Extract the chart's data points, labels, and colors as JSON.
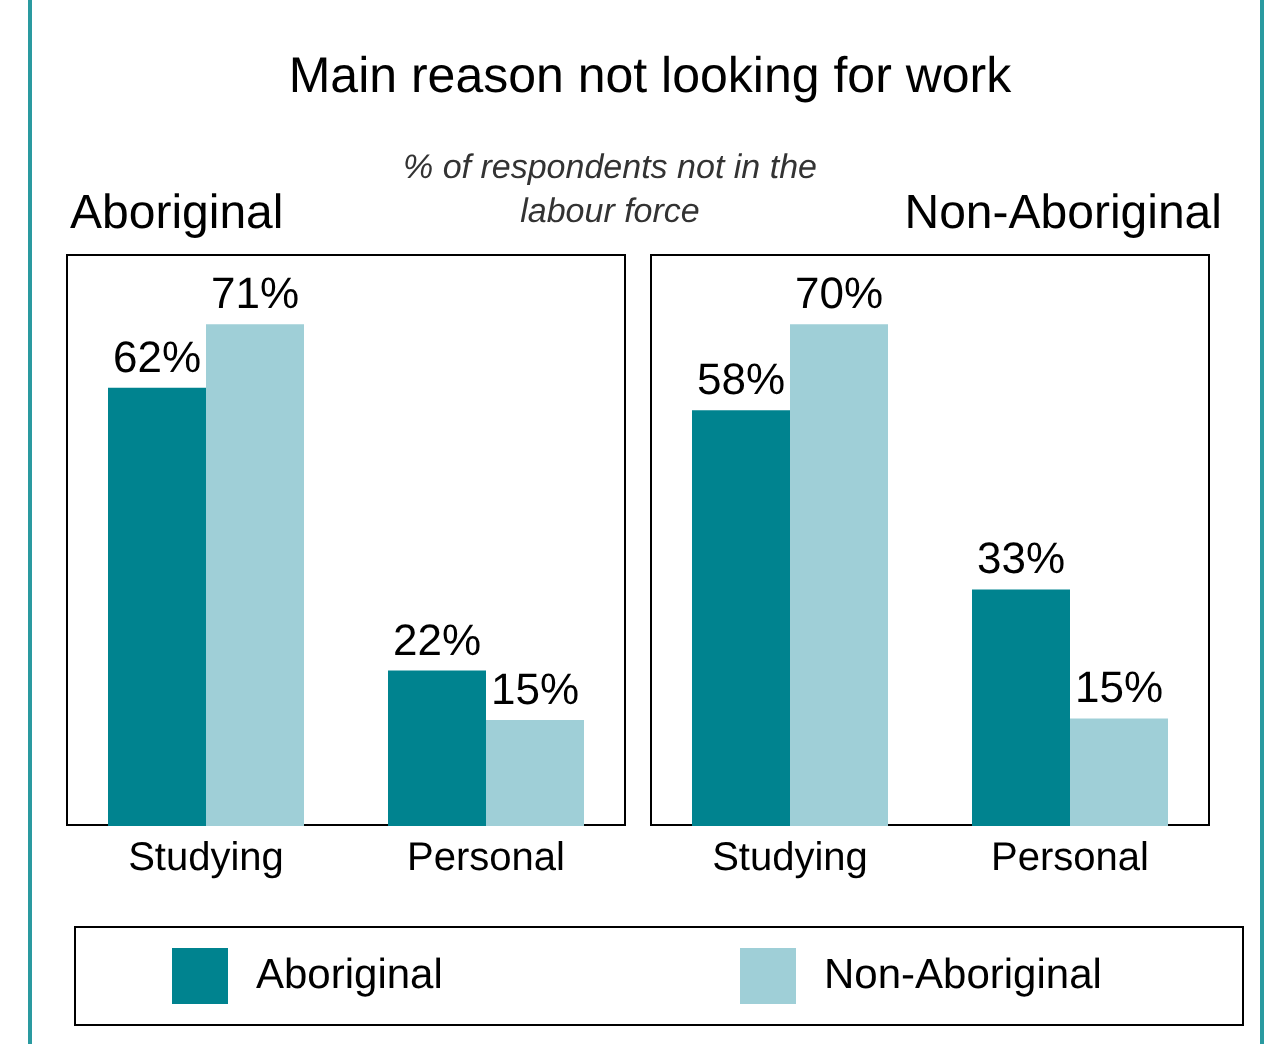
{
  "chart_data": [
    {
      "type": "bar",
      "title": "Aboriginal",
      "annotations": [
        "Main reason not looking for work",
        "% of respondents not in the labour force"
      ],
      "categories": [
        "Studying",
        "Personal"
      ],
      "series": [
        {
          "name": "Aboriginal",
          "color": "#00838f",
          "values": [
            62,
            22
          ],
          "value_labels": [
            "62%",
            "22%"
          ]
        },
        {
          "name": "Non-Aboriginal",
          "color": "#9fcfd7",
          "values": [
            71,
            15
          ],
          "value_labels": [
            "71%",
            "15%"
          ]
        }
      ],
      "legend": "bottom",
      "grid": false
    },
    {
      "type": "bar",
      "title": "Non-Aboriginal",
      "categories": [
        "Studying",
        "Personal"
      ],
      "series": [
        {
          "color": "#00838f",
          "values": [
            58,
            33
          ],
          "value_labels": [
            "58%",
            "33%"
          ]
        },
        {
          "color": "#9fcfd7",
          "values": [
            70,
            15
          ],
          "value_labels": [
            "70%",
            "15%"
          ]
        }
      ],
      "grid": false
    }
  ]
}
